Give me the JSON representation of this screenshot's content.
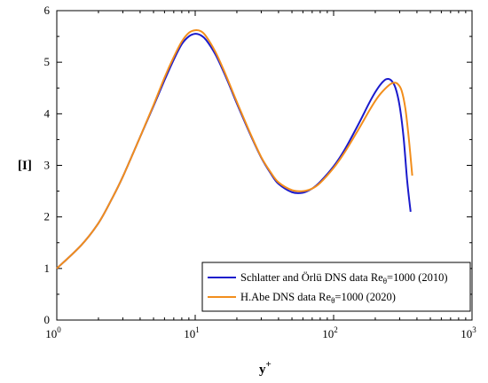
{
  "chart_data": {
    "type": "line",
    "x_scale": "log",
    "xlim": [
      1,
      1000
    ],
    "ylim": [
      0,
      6
    ],
    "xlabel": "y",
    "xlabel_sup": "+",
    "ylabel": "[I]",
    "x_ticks": [
      {
        "value": 1,
        "base": "10",
        "exp": "0"
      },
      {
        "value": 10,
        "base": "10",
        "exp": "1"
      },
      {
        "value": 100,
        "base": "10",
        "exp": "2"
      },
      {
        "value": 1000,
        "base": "10",
        "exp": "3"
      }
    ],
    "y_ticks": [
      {
        "value": 0,
        "label": "0"
      },
      {
        "value": 1,
        "label": "1"
      },
      {
        "value": 2,
        "label": "2"
      },
      {
        "value": 3,
        "label": "3"
      },
      {
        "value": 4,
        "label": "4"
      },
      {
        "value": 5,
        "label": "5"
      },
      {
        "value": 6,
        "label": "6"
      }
    ],
    "legend_position": "bottom-right",
    "series": [
      {
        "name_main": "Schlatter and Örlü DNS data Re",
        "name_sub": "θ",
        "name_tail": "=1000 (2010)",
        "color": "#1a1acc",
        "x": [
          1,
          1.5,
          2,
          2.5,
          3,
          4,
          5,
          6,
          7,
          8,
          9,
          10,
          11,
          12,
          14,
          16,
          18,
          20,
          25,
          30,
          35,
          40,
          50,
          60,
          70,
          80,
          100,
          120,
          150,
          180,
          200,
          220,
          240,
          260,
          280,
          300,
          320,
          340,
          360
        ],
        "y": [
          1.0,
          1.45,
          1.88,
          2.35,
          2.78,
          3.55,
          4.15,
          4.65,
          5.05,
          5.35,
          5.5,
          5.55,
          5.52,
          5.43,
          5.15,
          4.82,
          4.5,
          4.2,
          3.6,
          3.15,
          2.85,
          2.64,
          2.48,
          2.47,
          2.55,
          2.68,
          2.98,
          3.3,
          3.78,
          4.2,
          4.42,
          4.58,
          4.67,
          4.65,
          4.5,
          4.15,
          3.55,
          2.7,
          2.1
        ]
      },
      {
        "name_main": "H.Abe DNS data Re",
        "name_sub": "θ",
        "name_tail": "=1000 (2020)",
        "color": "#f28e1c",
        "x": [
          1,
          1.5,
          2,
          2.5,
          3,
          4,
          5,
          6,
          7,
          8,
          9,
          10,
          11,
          12,
          14,
          16,
          18,
          20,
          25,
          30,
          35,
          40,
          50,
          60,
          70,
          80,
          100,
          120,
          150,
          180,
          200,
          220,
          250,
          270,
          290,
          310,
          330,
          350,
          370
        ],
        "y": [
          1.0,
          1.45,
          1.88,
          2.35,
          2.78,
          3.55,
          4.17,
          4.7,
          5.1,
          5.4,
          5.57,
          5.62,
          5.6,
          5.5,
          5.2,
          4.86,
          4.53,
          4.23,
          3.62,
          3.16,
          2.87,
          2.67,
          2.52,
          2.5,
          2.55,
          2.66,
          2.95,
          3.25,
          3.68,
          4.05,
          4.25,
          4.4,
          4.55,
          4.6,
          4.58,
          4.45,
          4.1,
          3.5,
          2.8
        ]
      }
    ]
  }
}
